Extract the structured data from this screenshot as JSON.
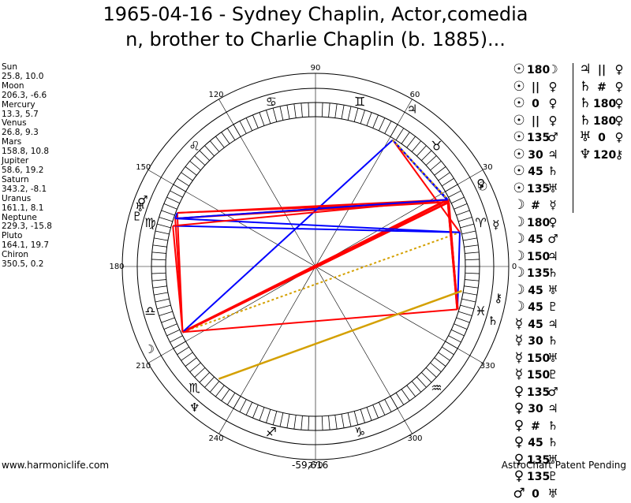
{
  "title": {
    "line1": "1965-04-16 - Sydney Chaplin, Actor,comedia",
    "line2": "n, brother to Charlie Chaplin (b. 1885)..."
  },
  "planets": [
    {
      "name": "Sun",
      "value": "25.8, 10.0",
      "glyph": "☉",
      "color": "#000000"
    },
    {
      "name": "Moon",
      "value": "206.3, -6.6",
      "glyph": "☽",
      "color": "#000000"
    },
    {
      "name": "Mercury",
      "value": "13.3, 5.7",
      "glyph": "☿",
      "color": "#000000"
    },
    {
      "name": "Venus",
      "value": "26.8, 9.3",
      "glyph": "♀",
      "color": "#000000"
    },
    {
      "name": "Mars",
      "value": "158.8, 10.8",
      "glyph": "♂",
      "color": "#000000"
    },
    {
      "name": "Jupiter",
      "value": "58.6, 19.2",
      "glyph": "♃",
      "color": "#000000"
    },
    {
      "name": "Saturn",
      "value": "343.2, -8.1",
      "glyph": "♄",
      "color": "#000000"
    },
    {
      "name": "Uranus",
      "value": "161.1, 8.1",
      "glyph": "♅",
      "color": "#000000"
    },
    {
      "name": "Neptune",
      "value": "229.3, -15.8",
      "glyph": "♆",
      "color": "#000000"
    },
    {
      "name": "Pluto",
      "value": "164.1, 19.7",
      "glyph": "♇",
      "color": "#000000"
    },
    {
      "name": "Chiron",
      "value": "350.5, 0.2",
      "glyph": "⚷",
      "color": "#000000"
    }
  ],
  "degree_labels": [
    "90",
    "120",
    "150",
    "180",
    "210",
    "240",
    "270",
    "300",
    "330",
    "0",
    "30",
    "60"
  ],
  "zodiac": [
    "♈",
    "♉",
    "♊",
    "♋",
    "♌",
    "♍",
    "♎",
    "♏",
    "♐",
    "♑",
    "♒",
    "♓"
  ],
  "aspects_col1": [
    {
      "a": "☉",
      "sym": "180",
      "b": "☽"
    },
    {
      "a": "☉",
      "sym": "||",
      "b": "♀"
    },
    {
      "a": "☉",
      "sym": "0",
      "b": "♀"
    },
    {
      "a": "☉",
      "sym": "||",
      "b": "♀"
    },
    {
      "a": "☉",
      "sym": "135",
      "b": "♂"
    },
    {
      "a": "☉",
      "sym": "30",
      "b": "♃"
    },
    {
      "a": "☉",
      "sym": "45",
      "b": "♄"
    },
    {
      "a": "☉",
      "sym": "135",
      "b": "♅"
    },
    {
      "a": "☽",
      "sym": "#",
      "b": "☿"
    },
    {
      "a": "☽",
      "sym": "180",
      "b": "♀"
    },
    {
      "a": "☽",
      "sym": "45",
      "b": "♂"
    },
    {
      "a": "☽",
      "sym": "150",
      "b": "♃"
    },
    {
      "a": "☽",
      "sym": "135",
      "b": "♄"
    },
    {
      "a": "☽",
      "sym": "45",
      "b": "♅"
    },
    {
      "a": "☽",
      "sym": "45",
      "b": "♇"
    },
    {
      "a": "☿",
      "sym": "45",
      "b": "♃"
    },
    {
      "a": "☿",
      "sym": "30",
      "b": "♄"
    },
    {
      "a": "☿",
      "sym": "150",
      "b": "♅"
    },
    {
      "a": "☿",
      "sym": "150",
      "b": "♇"
    },
    {
      "a": "♀",
      "sym": "135",
      "b": "♂"
    },
    {
      "a": "♀",
      "sym": "30",
      "b": "♃"
    },
    {
      "a": "♀",
      "sym": "#",
      "b": "♄"
    },
    {
      "a": "♀",
      "sym": "45",
      "b": "♄"
    },
    {
      "a": "♀",
      "sym": "135",
      "b": "♅"
    },
    {
      "a": "♀",
      "sym": "135",
      "b": "♇"
    },
    {
      "a": "♂",
      "sym": "0",
      "b": "♅"
    }
  ],
  "aspects_col2": [
    {
      "a": "♃",
      "sym": "||",
      "b": "♀"
    },
    {
      "a": "♄",
      "sym": "#",
      "b": "♀"
    },
    {
      "a": "♄",
      "sym": "180",
      "b": "♀"
    },
    {
      "a": "♄",
      "sym": "180",
      "b": "♀"
    },
    {
      "a": "♅",
      "sym": "0",
      "b": "♀"
    },
    {
      "a": "♆",
      "sym": "120",
      "b": "⚷"
    }
  ],
  "footer": {
    "left": "www.harmoniclife.com",
    "center": "-59,616",
    "right": "AstroChart Patent Pending"
  },
  "colors": {
    "hard": "#ff0000",
    "soft": "#0000ff",
    "quintile": "#d4a000",
    "wheel": "#000000"
  }
}
